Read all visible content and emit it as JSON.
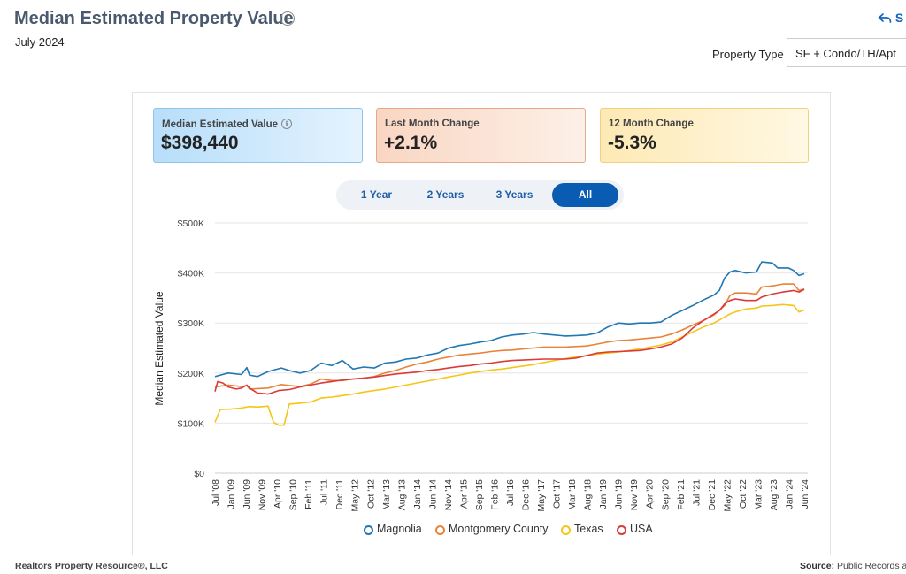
{
  "header": {
    "title": "Median Estimated Property Value",
    "subtitle": "July 2024",
    "share_label": "S"
  },
  "filters": {
    "property_type_label": "Property Type",
    "property_type_value": "SF + Condo/TH/Apt"
  },
  "cards": {
    "median": {
      "label": "Median Estimated Value",
      "value": "$398,440"
    },
    "last_month": {
      "label": "Last Month Change",
      "value": "+2.1%"
    },
    "twelve_month": {
      "label": "12 Month Change",
      "value": "-5.3%"
    }
  },
  "range_buttons": [
    {
      "label": "1 Year",
      "active": false
    },
    {
      "label": "2 Years",
      "active": false
    },
    {
      "label": "3 Years",
      "active": false
    },
    {
      "label": "All",
      "active": true
    }
  ],
  "footer": {
    "left": "Realtors Property Resource®, LLC",
    "source_label": "Source:",
    "source_value": "Public Records ar"
  },
  "colors": {
    "Magnolia": "#1f77b4",
    "Montgomery County": "#e8833a",
    "Texas": "#f5c518",
    "USA": "#d93a3a"
  },
  "chart_data": {
    "type": "line",
    "title": "",
    "xlabel": "",
    "ylabel": "Median Estimated Value",
    "ylim": [
      0,
      500000
    ],
    "y_ticks": [
      "$0",
      "$100K",
      "$200K",
      "$300K",
      "$400K",
      "$500K"
    ],
    "x_ticks": [
      "Jul '08",
      "Jan '09",
      "Jun '09",
      "Nov '09",
      "Apr '10",
      "Sep '10",
      "Feb '11",
      "Jul '11",
      "Dec '11",
      "May '12",
      "Oct '12",
      "Mar '13",
      "Aug '13",
      "Jan '14",
      "Jun '14",
      "Nov '14",
      "Apr '15",
      "Sep '15",
      "Feb '16",
      "Jul '16",
      "Dec '16",
      "May '17",
      "Oct '17",
      "Mar '18",
      "Aug '18",
      "Jan '19",
      "Jun '19",
      "Nov '19",
      "Apr '20",
      "Sep '20",
      "Feb '21",
      "Jul '21",
      "Dec '21",
      "May '22",
      "Oct '22",
      "Mar '23",
      "Aug '23",
      "Jan '24",
      "Jun '24"
    ],
    "grid": true,
    "legend_position": "bottom",
    "series": [
      {
        "name": "Magnolia",
        "values": [
          [
            0,
            193000
          ],
          [
            5,
            200000
          ],
          [
            10,
            197000
          ],
          [
            12,
            211000
          ],
          [
            13,
            196000
          ],
          [
            16,
            193000
          ],
          [
            20,
            203000
          ],
          [
            25,
            210000
          ],
          [
            28,
            205000
          ],
          [
            32,
            200000
          ],
          [
            36,
            205000
          ],
          [
            40,
            220000
          ],
          [
            44,
            215000
          ],
          [
            48,
            225000
          ],
          [
            52,
            208000
          ],
          [
            56,
            212000
          ],
          [
            60,
            210000
          ],
          [
            64,
            220000
          ],
          [
            68,
            222000
          ],
          [
            72,
            228000
          ],
          [
            76,
            230000
          ],
          [
            80,
            236000
          ],
          [
            84,
            240000
          ],
          [
            88,
            250000
          ],
          [
            92,
            255000
          ],
          [
            96,
            258000
          ],
          [
            100,
            262000
          ],
          [
            104,
            265000
          ],
          [
            108,
            272000
          ],
          [
            112,
            276000
          ],
          [
            116,
            278000
          ],
          [
            120,
            281000
          ],
          [
            124,
            278000
          ],
          [
            128,
            276000
          ],
          [
            132,
            274000
          ],
          [
            136,
            275000
          ],
          [
            140,
            276000
          ],
          [
            144,
            280000
          ],
          [
            148,
            292000
          ],
          [
            152,
            300000
          ],
          [
            156,
            298000
          ],
          [
            160,
            300000
          ],
          [
            164,
            300000
          ],
          [
            168,
            302000
          ],
          [
            172,
            315000
          ],
          [
            176,
            325000
          ],
          [
            180,
            335000
          ],
          [
            184,
            346000
          ],
          [
            188,
            356000
          ],
          [
            190,
            365000
          ],
          [
            192,
            390000
          ],
          [
            194,
            402000
          ],
          [
            196,
            405000
          ],
          [
            200,
            400000
          ],
          [
            204,
            402000
          ],
          [
            206,
            422000
          ],
          [
            210,
            420000
          ],
          [
            212,
            410000
          ],
          [
            216,
            410000
          ],
          [
            218,
            405000
          ],
          [
            220,
            395000
          ],
          [
            222,
            398440
          ]
        ]
      },
      {
        "name": "Montgomery County",
        "values": [
          [
            0,
            172000
          ],
          [
            5,
            176000
          ],
          [
            10,
            173000
          ],
          [
            12,
            175000
          ],
          [
            13,
            168000
          ],
          [
            20,
            170000
          ],
          [
            25,
            177000
          ],
          [
            28,
            175000
          ],
          [
            32,
            173000
          ],
          [
            36,
            178000
          ],
          [
            40,
            188000
          ],
          [
            44,
            185000
          ],
          [
            48,
            185000
          ],
          [
            52,
            188000
          ],
          [
            56,
            190000
          ],
          [
            60,
            193000
          ],
          [
            64,
            200000
          ],
          [
            68,
            205000
          ],
          [
            72,
            212000
          ],
          [
            76,
            218000
          ],
          [
            80,
            222000
          ],
          [
            84,
            228000
          ],
          [
            88,
            232000
          ],
          [
            92,
            236000
          ],
          [
            96,
            238000
          ],
          [
            100,
            240000
          ],
          [
            104,
            243000
          ],
          [
            108,
            245000
          ],
          [
            112,
            246000
          ],
          [
            116,
            248000
          ],
          [
            120,
            250000
          ],
          [
            124,
            252000
          ],
          [
            128,
            252000
          ],
          [
            132,
            252000
          ],
          [
            136,
            253000
          ],
          [
            140,
            254000
          ],
          [
            144,
            258000
          ],
          [
            148,
            262000
          ],
          [
            152,
            265000
          ],
          [
            156,
            266000
          ],
          [
            160,
            268000
          ],
          [
            164,
            270000
          ],
          [
            168,
            272000
          ],
          [
            172,
            278000
          ],
          [
            176,
            286000
          ],
          [
            180,
            296000
          ],
          [
            184,
            305000
          ],
          [
            188,
            316000
          ],
          [
            192,
            335000
          ],
          [
            194,
            355000
          ],
          [
            196,
            360000
          ],
          [
            200,
            360000
          ],
          [
            204,
            358000
          ],
          [
            206,
            372000
          ],
          [
            210,
            374000
          ],
          [
            214,
            378000
          ],
          [
            218,
            378000
          ],
          [
            220,
            365000
          ],
          [
            222,
            368000
          ]
        ]
      },
      {
        "name": "Texas",
        "values": [
          [
            0,
            102000
          ],
          [
            2,
            127000
          ],
          [
            6,
            128000
          ],
          [
            10,
            130000
          ],
          [
            13,
            133000
          ],
          [
            16,
            132000
          ],
          [
            20,
            134000
          ],
          [
            22,
            102000
          ],
          [
            24,
            96000
          ],
          [
            26,
            96000
          ],
          [
            28,
            138000
          ],
          [
            32,
            140000
          ],
          [
            36,
            142000
          ],
          [
            40,
            150000
          ],
          [
            44,
            152000
          ],
          [
            48,
            155000
          ],
          [
            52,
            158000
          ],
          [
            56,
            162000
          ],
          [
            60,
            165000
          ],
          [
            64,
            168000
          ],
          [
            68,
            172000
          ],
          [
            72,
            176000
          ],
          [
            76,
            180000
          ],
          [
            80,
            184000
          ],
          [
            84,
            188000
          ],
          [
            88,
            192000
          ],
          [
            92,
            196000
          ],
          [
            96,
            200000
          ],
          [
            100,
            203000
          ],
          [
            104,
            206000
          ],
          [
            108,
            208000
          ],
          [
            112,
            211000
          ],
          [
            116,
            214000
          ],
          [
            120,
            217000
          ],
          [
            124,
            221000
          ],
          [
            128,
            225000
          ],
          [
            132,
            229000
          ],
          [
            136,
            232000
          ],
          [
            140,
            235000
          ],
          [
            144,
            238000
          ],
          [
            148,
            240000
          ],
          [
            152,
            242000
          ],
          [
            156,
            245000
          ],
          [
            160,
            248000
          ],
          [
            164,
            252000
          ],
          [
            168,
            256000
          ],
          [
            172,
            262000
          ],
          [
            176,
            272000
          ],
          [
            180,
            282000
          ],
          [
            184,
            292000
          ],
          [
            188,
            300000
          ],
          [
            192,
            312000
          ],
          [
            194,
            318000
          ],
          [
            196,
            322000
          ],
          [
            200,
            328000
          ],
          [
            204,
            330000
          ],
          [
            206,
            334000
          ],
          [
            210,
            335000
          ],
          [
            214,
            337000
          ],
          [
            218,
            335000
          ],
          [
            220,
            322000
          ],
          [
            222,
            326000
          ]
        ]
      },
      {
        "name": "USA",
        "values": [
          [
            0,
            163000
          ],
          [
            1,
            183000
          ],
          [
            3,
            180000
          ],
          [
            5,
            172000
          ],
          [
            8,
            168000
          ],
          [
            10,
            170000
          ],
          [
            12,
            176000
          ],
          [
            13,
            170000
          ],
          [
            16,
            160000
          ],
          [
            20,
            158000
          ],
          [
            24,
            165000
          ],
          [
            28,
            167000
          ],
          [
            32,
            172000
          ],
          [
            36,
            176000
          ],
          [
            40,
            180000
          ],
          [
            44,
            183000
          ],
          [
            48,
            186000
          ],
          [
            52,
            188000
          ],
          [
            56,
            190000
          ],
          [
            60,
            192000
          ],
          [
            64,
            195000
          ],
          [
            68,
            198000
          ],
          [
            72,
            200000
          ],
          [
            76,
            202000
          ],
          [
            80,
            205000
          ],
          [
            84,
            207000
          ],
          [
            88,
            210000
          ],
          [
            92,
            213000
          ],
          [
            96,
            215000
          ],
          [
            100,
            218000
          ],
          [
            104,
            220000
          ],
          [
            108,
            223000
          ],
          [
            112,
            225000
          ],
          [
            116,
            226000
          ],
          [
            120,
            227000
          ],
          [
            124,
            228000
          ],
          [
            128,
            228000
          ],
          [
            132,
            228000
          ],
          [
            136,
            230000
          ],
          [
            140,
            235000
          ],
          [
            144,
            240000
          ],
          [
            148,
            242000
          ],
          [
            152,
            243000
          ],
          [
            156,
            244000
          ],
          [
            160,
            245000
          ],
          [
            164,
            248000
          ],
          [
            168,
            252000
          ],
          [
            172,
            258000
          ],
          [
            176,
            270000
          ],
          [
            180,
            290000
          ],
          [
            184,
            305000
          ],
          [
            188,
            318000
          ],
          [
            190,
            325000
          ],
          [
            192,
            338000
          ],
          [
            194,
            345000
          ],
          [
            196,
            348000
          ],
          [
            200,
            345000
          ],
          [
            204,
            345000
          ],
          [
            206,
            352000
          ],
          [
            210,
            358000
          ],
          [
            214,
            362000
          ],
          [
            218,
            365000
          ],
          [
            220,
            362000
          ],
          [
            222,
            367000
          ]
        ]
      }
    ]
  }
}
